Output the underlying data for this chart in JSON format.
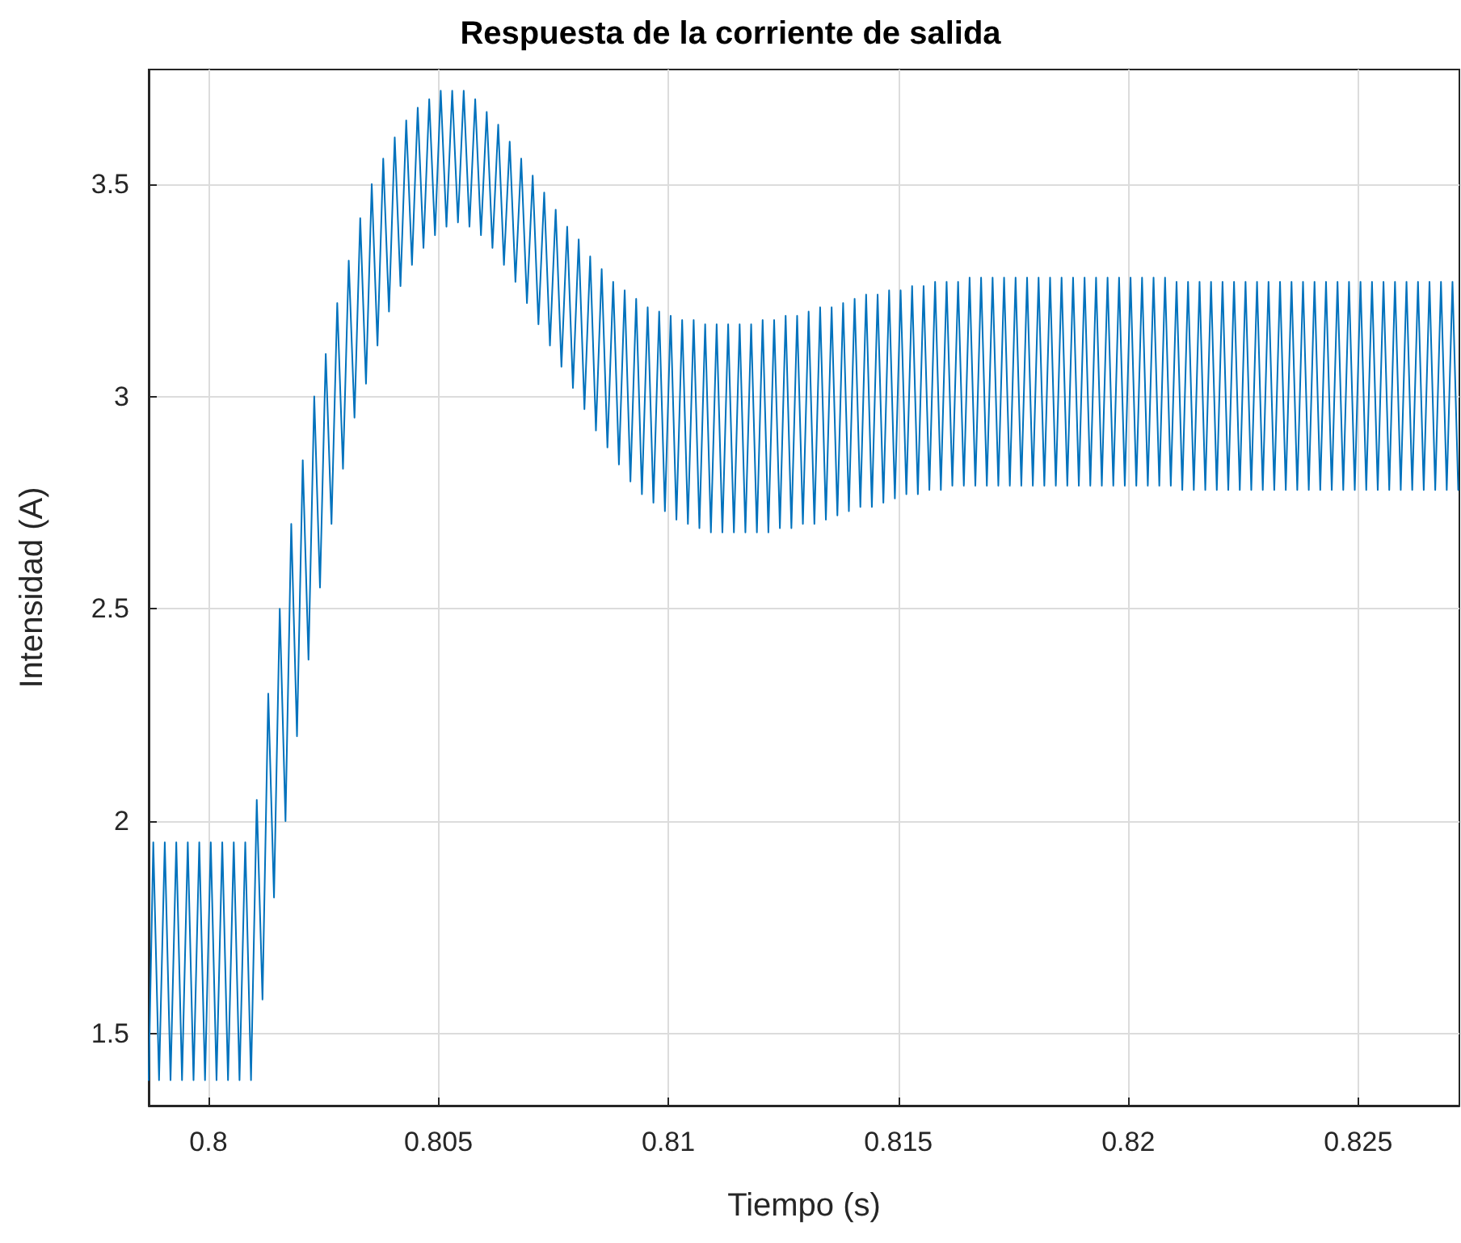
{
  "chart_data": {
    "type": "line",
    "title": "Respuesta de la corriente de salida",
    "xlabel": "Tiempo (s)",
    "ylabel": "Intensidad (A)",
    "xlim": [
      0.7987,
      0.8272
    ],
    "ylim": [
      1.33,
      3.77
    ],
    "xticks": [
      0.8,
      0.805,
      0.81,
      0.815,
      0.82,
      0.825
    ],
    "yticks": [
      1.5,
      2,
      2.5,
      3,
      3.5
    ],
    "grid": true,
    "marker": "none",
    "line_style": "solid",
    "series": [
      {
        "color": "#0072bd",
        "x": [
          0.7987,
          0.7988,
          0.798925,
          0.79905,
          0.799175,
          0.7993,
          0.799425,
          0.79955,
          0.799675,
          0.7998,
          0.799925,
          0.80005,
          0.800175,
          0.8003,
          0.800425,
          0.80055,
          0.800675,
          0.8008,
          0.800925,
          0.80105,
          0.801175,
          0.8013,
          0.801425,
          0.80155,
          0.801675,
          0.8018,
          0.801925,
          0.80205,
          0.802175,
          0.8023,
          0.802425,
          0.80255,
          0.802675,
          0.8028,
          0.802925,
          0.80305,
          0.803175,
          0.8033,
          0.803425,
          0.80355,
          0.803675,
          0.8038,
          0.803925,
          0.80405,
          0.804175,
          0.8043,
          0.804425,
          0.80455,
          0.804675,
          0.8048,
          0.804925,
          0.80505,
          0.805175,
          0.8053,
          0.805425,
          0.80555,
          0.805675,
          0.8058,
          0.805925,
          0.80605,
          0.806175,
          0.8063,
          0.806425,
          0.80655,
          0.806675,
          0.8068,
          0.806925,
          0.80705,
          0.807175,
          0.8073,
          0.807425,
          0.80755,
          0.807675,
          0.8078,
          0.807925,
          0.80805,
          0.808175,
          0.8083,
          0.808425,
          0.80855,
          0.808675,
          0.8088,
          0.808925,
          0.80905,
          0.809175,
          0.8093,
          0.809425,
          0.80955,
          0.809675,
          0.8098,
          0.809925,
          0.81005,
          0.810175,
          0.8103,
          0.810425,
          0.81055,
          0.810675,
          0.8108,
          0.810925,
          0.81105,
          0.811175,
          0.8113,
          0.811425,
          0.81155,
          0.811675,
          0.8118,
          0.811925,
          0.81205,
          0.812175,
          0.8123,
          0.812425,
          0.81255,
          0.812675,
          0.8128,
          0.812925,
          0.81305,
          0.813175,
          0.8133,
          0.813425,
          0.81355,
          0.813675,
          0.8138,
          0.813925,
          0.81405,
          0.814175,
          0.8143,
          0.814425,
          0.81455,
          0.814675,
          0.8148,
          0.814925,
          0.81505,
          0.815175,
          0.8153,
          0.815425,
          0.81555,
          0.815675,
          0.8158,
          0.815925,
          0.81605,
          0.816175,
          0.8163,
          0.816425,
          0.81655,
          0.816675,
          0.8168,
          0.816925,
          0.81705,
          0.817175,
          0.8173,
          0.817425,
          0.81755,
          0.817675,
          0.8178,
          0.817925,
          0.81805,
          0.818175,
          0.8183,
          0.818425,
          0.81855,
          0.818675,
          0.8188,
          0.818925,
          0.81905,
          0.819175,
          0.8193,
          0.819425,
          0.81955,
          0.819675,
          0.8198,
          0.819925,
          0.82005,
          0.820175,
          0.8203,
          0.820425,
          0.82055,
          0.820675,
          0.8208,
          0.820925,
          0.82105,
          0.821175,
          0.8213,
          0.821425,
          0.82155,
          0.821675,
          0.8218,
          0.821925,
          0.82205,
          0.822175,
          0.8223,
          0.822425,
          0.82255,
          0.822675,
          0.8228,
          0.822925,
          0.82305,
          0.823175,
          0.8233,
          0.823425,
          0.82355,
          0.823675,
          0.8238,
          0.823925,
          0.82405,
          0.824175,
          0.8243,
          0.824425,
          0.82455,
          0.824675,
          0.8248,
          0.824925,
          0.82505,
          0.825175,
          0.8253,
          0.825425,
          0.82555,
          0.825675,
          0.8258,
          0.825925,
          0.82605,
          0.826175,
          0.8263,
          0.826425,
          0.82655,
          0.826675,
          0.8268,
          0.826925,
          0.82705,
          0.827175
        ],
        "values": [
          1.39,
          1.95,
          1.39,
          1.95,
          1.39,
          1.95,
          1.39,
          1.95,
          1.39,
          1.95,
          1.39,
          1.95,
          1.39,
          1.95,
          1.39,
          1.95,
          1.39,
          1.95,
          1.39,
          2.05,
          1.58,
          2.3,
          1.82,
          2.5,
          2.0,
          2.7,
          2.2,
          2.85,
          2.38,
          3.0,
          2.55,
          3.1,
          2.7,
          3.22,
          2.83,
          3.32,
          2.95,
          3.42,
          3.03,
          3.5,
          3.12,
          3.56,
          3.2,
          3.61,
          3.26,
          3.65,
          3.31,
          3.68,
          3.35,
          3.7,
          3.38,
          3.72,
          3.4,
          3.72,
          3.41,
          3.72,
          3.4,
          3.7,
          3.38,
          3.67,
          3.35,
          3.64,
          3.31,
          3.6,
          3.27,
          3.56,
          3.22,
          3.52,
          3.17,
          3.48,
          3.12,
          3.44,
          3.07,
          3.4,
          3.02,
          3.37,
          2.97,
          3.33,
          2.92,
          3.3,
          2.88,
          3.27,
          2.84,
          3.25,
          2.8,
          3.23,
          2.77,
          3.21,
          2.75,
          3.2,
          2.73,
          3.19,
          2.71,
          3.18,
          2.7,
          3.18,
          2.69,
          3.17,
          2.68,
          3.17,
          2.68,
          3.17,
          2.68,
          3.17,
          2.68,
          3.17,
          2.68,
          3.18,
          2.68,
          3.18,
          2.69,
          3.19,
          2.69,
          3.19,
          2.7,
          3.2,
          2.7,
          3.21,
          2.71,
          3.21,
          2.72,
          3.22,
          2.73,
          3.23,
          2.74,
          3.24,
          2.74,
          3.24,
          2.75,
          3.25,
          2.76,
          3.25,
          2.77,
          3.26,
          2.77,
          3.26,
          2.78,
          3.27,
          2.78,
          3.27,
          2.79,
          3.27,
          2.79,
          3.28,
          2.79,
          3.28,
          2.79,
          3.28,
          2.79,
          3.28,
          2.79,
          3.28,
          2.79,
          3.28,
          2.79,
          3.28,
          2.79,
          3.28,
          2.79,
          3.28,
          2.79,
          3.28,
          2.79,
          3.28,
          2.79,
          3.28,
          2.79,
          3.28,
          2.79,
          3.28,
          2.79,
          3.28,
          2.79,
          3.28,
          2.79,
          3.28,
          2.79,
          3.28,
          2.79,
          3.27,
          2.78,
          3.27,
          2.78,
          3.27,
          2.78,
          3.27,
          2.78,
          3.27,
          2.78,
          3.27,
          2.78,
          3.27,
          2.78,
          3.27,
          2.78,
          3.27,
          2.78,
          3.27,
          2.78,
          3.27,
          2.78,
          3.27,
          2.78,
          3.27,
          2.78,
          3.27,
          2.78,
          3.27,
          2.78,
          3.27,
          2.78,
          3.27,
          2.78,
          3.27,
          2.78,
          3.27,
          2.78,
          3.27,
          2.78,
          3.27,
          2.78,
          3.27,
          2.78,
          3.27,
          2.78,
          3.27,
          2.78,
          3.27,
          2.78
        ]
      }
    ]
  }
}
